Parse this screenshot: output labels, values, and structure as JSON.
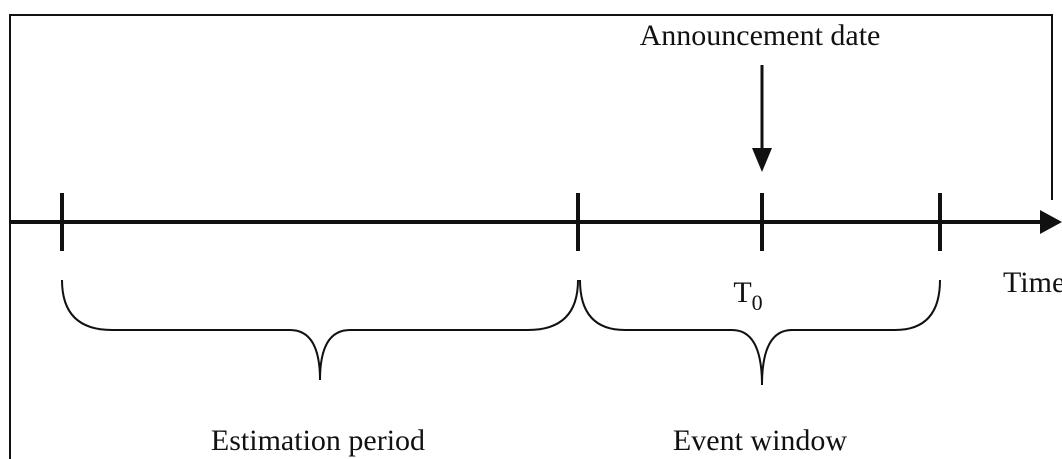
{
  "labels": {
    "announcement": "Announcement date",
    "time": "Time",
    "t0": {
      "base": "T",
      "sub": "0"
    },
    "estimation": "Estimation period",
    "event": "Event window"
  }
}
